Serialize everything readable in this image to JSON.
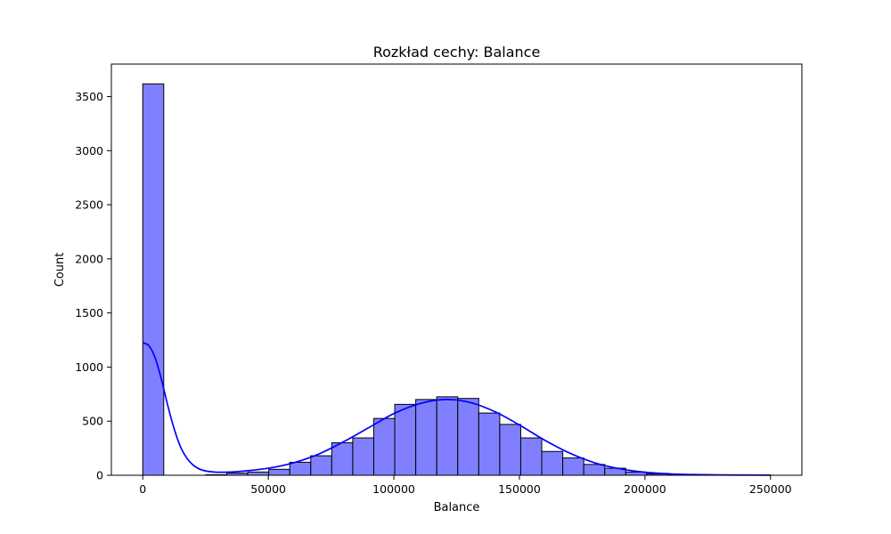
{
  "chart_data": {
    "type": "bar",
    "title": "Rozkład cechy: Balance",
    "xlabel": "Balance",
    "ylabel": "Count",
    "xlim": [
      -12500,
      262500
    ],
    "ylim": [
      0,
      3800
    ],
    "xticks": [
      0,
      50000,
      100000,
      150000,
      200000,
      250000
    ],
    "yticks": [
      0,
      500,
      1000,
      1500,
      2000,
      2500,
      3000,
      3500
    ],
    "grid": false,
    "bar_color": "#8080ff",
    "line_color": "#0000ff",
    "bins": [
      {
        "x0": 0,
        "x1": 8363,
        "count": 3617
      },
      {
        "x0": 8363,
        "x1": 16726,
        "count": 0
      },
      {
        "x0": 16726,
        "x1": 25089,
        "count": 0
      },
      {
        "x0": 25089,
        "x1": 33452,
        "count": 5
      },
      {
        "x0": 33452,
        "x1": 41815,
        "count": 20
      },
      {
        "x0": 41815,
        "x1": 50178,
        "count": 30
      },
      {
        "x0": 50178,
        "x1": 58541,
        "count": 55
      },
      {
        "x0": 58541,
        "x1": 66904,
        "count": 120
      },
      {
        "x0": 66904,
        "x1": 75267,
        "count": 180
      },
      {
        "x0": 75267,
        "x1": 83630,
        "count": 300
      },
      {
        "x0": 83630,
        "x1": 91993,
        "count": 345
      },
      {
        "x0": 91993,
        "x1": 100356,
        "count": 525
      },
      {
        "x0": 100356,
        "x1": 108719,
        "count": 655
      },
      {
        "x0": 108719,
        "x1": 117082,
        "count": 700
      },
      {
        "x0": 117082,
        "x1": 125445,
        "count": 725
      },
      {
        "x0": 125445,
        "x1": 133808,
        "count": 710
      },
      {
        "x0": 133808,
        "x1": 142171,
        "count": 575
      },
      {
        "x0": 142171,
        "x1": 150534,
        "count": 470
      },
      {
        "x0": 150534,
        "x1": 158897,
        "count": 345
      },
      {
        "x0": 158897,
        "x1": 167260,
        "count": 220
      },
      {
        "x0": 167260,
        "x1": 175623,
        "count": 160
      },
      {
        "x0": 175623,
        "x1": 183986,
        "count": 100
      },
      {
        "x0": 183986,
        "x1": 192349,
        "count": 65
      },
      {
        "x0": 192349,
        "x1": 200712,
        "count": 30
      },
      {
        "x0": 200712,
        "x1": 209075,
        "count": 12
      },
      {
        "x0": 209075,
        "x1": 217438,
        "count": 5
      },
      {
        "x0": 217438,
        "x1": 225801,
        "count": 3
      },
      {
        "x0": 225801,
        "x1": 234164,
        "count": 2
      },
      {
        "x0": 234164,
        "x1": 242527,
        "count": 1
      },
      {
        "x0": 242527,
        "x1": 250898,
        "count": 1
      }
    ],
    "kde": {
      "x": [
        0,
        2500,
        5000,
        7500,
        10000,
        12500,
        15000,
        17500,
        20000,
        22500,
        25000,
        27500,
        30000,
        35000,
        40000,
        50000,
        60000,
        70000,
        80000,
        90000,
        100000,
        110000,
        120000,
        130000,
        140000,
        150000,
        160000,
        170000,
        180000,
        190000,
        200000,
        210000,
        220000,
        230000,
        240000,
        250000
      ],
      "y": [
        1225,
        1195,
        1080,
        880,
        640,
        430,
        265,
        160,
        95,
        58,
        40,
        32,
        28,
        30,
        38,
        65,
        115,
        195,
        310,
        440,
        570,
        660,
        700,
        675,
        590,
        465,
        325,
        205,
        115,
        60,
        28,
        13,
        6,
        3,
        2,
        1
      ]
    }
  }
}
